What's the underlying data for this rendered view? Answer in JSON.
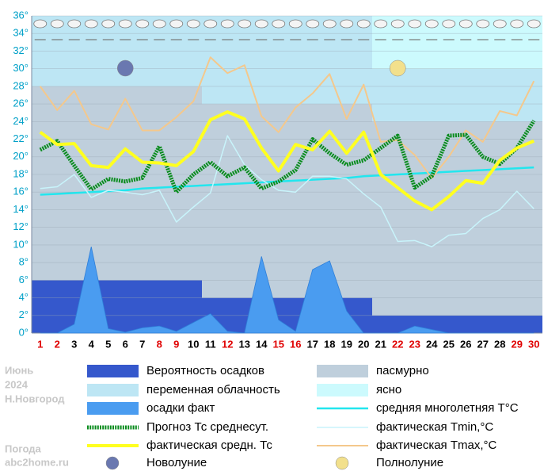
{
  "chart_data": {
    "type": "line",
    "categories": [
      "1",
      "2",
      "3",
      "4",
      "5",
      "6",
      "7",
      "8",
      "9",
      "10",
      "11",
      "12",
      "13",
      "14",
      "15",
      "16",
      "17",
      "18",
      "19",
      "20",
      "21",
      "22",
      "23",
      "24",
      "25",
      "26",
      "27",
      "28",
      "29",
      "30"
    ],
    "category_colors": [
      "#e00000",
      "#e00000",
      "#000000",
      "#000000",
      "#000000",
      "#000000",
      "#000000",
      "#e00000",
      "#e00000",
      "#000000",
      "#000000",
      "#e00000",
      "#000000",
      "#000000",
      "#e00000",
      "#e00000",
      "#000000",
      "#000000",
      "#000000",
      "#000000",
      "#000000",
      "#e00000",
      "#e00000",
      "#000000",
      "#000000",
      "#000000",
      "#000000",
      "#000000",
      "#e00000",
      "#e00000"
    ],
    "ylim": [
      0,
      36
    ],
    "yticks": [
      {
        "value": 0,
        "label": "0°"
      },
      {
        "value": 2,
        "label": "2°"
      },
      {
        "value": 4,
        "label": "4°"
      },
      {
        "value": 6,
        "label": "6°"
      },
      {
        "value": 8,
        "label": "8°"
      },
      {
        "value": 10,
        "label": "10°"
      },
      {
        "value": 12,
        "label": "12°"
      },
      {
        "value": 14,
        "label": "14°"
      },
      {
        "value": 16,
        "label": "16°"
      },
      {
        "value": 18,
        "label": "18°"
      },
      {
        "value": 20,
        "label": "20°"
      },
      {
        "value": 22,
        "label": "22°"
      },
      {
        "value": 24,
        "label": "24°"
      },
      {
        "value": 26,
        "label": "26°"
      },
      {
        "value": 28,
        "label": "28°"
      },
      {
        "value": 30,
        "label": "30°"
      },
      {
        "value": 32,
        "label": "32°"
      },
      {
        "value": 34,
        "label": "34°"
      },
      {
        "value": 36,
        "label": "36°"
      }
    ],
    "grid": true,
    "cloud_layers": [
      {
        "name": "Вероятность осадков",
        "color": "#3558cc",
        "values": [
          6,
          4,
          2
        ]
      },
      {
        "name": "пасмурно",
        "color": "#bfcfdc",
        "values": [
          22,
          22,
          22
        ]
      },
      {
        "name": "переменная облачность",
        "color": "#bde6f4",
        "values": [
          8,
          10,
          6
        ]
      },
      {
        "name": "ясно",
        "color": "#ccfafd",
        "values": [
          0,
          0,
          6
        ]
      }
    ],
    "series": [
      {
        "name": "осадки факт",
        "kind": "area",
        "color": "#4a9cf0",
        "values": [
          0,
          0,
          1,
          9.8,
          0.5,
          0.1,
          0.6,
          0.8,
          0.2,
          1.2,
          2.2,
          0.2,
          0,
          8.7,
          1.5,
          0.2,
          7.2,
          8.2,
          2.5,
          0,
          0,
          0,
          0.8,
          0.4,
          0,
          0,
          0,
          0,
          0,
          0
        ]
      },
      {
        "name": "средняя многолетняя Т°С",
        "kind": "line",
        "color": "#22e6ee",
        "width": 2.5,
        "values": [
          15.7,
          15.8,
          15.9,
          16.0,
          16.1,
          16.2,
          16.4,
          16.5,
          16.6,
          16.7,
          16.8,
          16.9,
          17.0,
          17.1,
          17.2,
          17.3,
          17.4,
          17.5,
          17.6,
          17.8,
          17.9,
          18.0,
          18.1,
          18.2,
          18.3,
          18.4,
          18.5,
          18.6,
          18.7,
          18.8
        ]
      },
      {
        "name": "фактическая Tmin,°С",
        "kind": "line",
        "color": "#c8f4fb",
        "width": 1.5,
        "values": [
          16.4,
          16.6,
          18,
          15.4,
          16.2,
          16,
          15.7,
          16.2,
          12.6,
          14.3,
          15.9,
          22.4,
          19.1,
          17.4,
          16.2,
          16,
          17.8,
          17.8,
          17.5,
          15.8,
          14.3,
          10.4,
          10.5,
          9.8,
          11.1,
          11.3,
          13,
          14,
          16.1,
          14.1
        ]
      },
      {
        "name": "фактическая Tmax,°С",
        "kind": "line",
        "color": "#f4c88c",
        "width": 2,
        "values": [
          28,
          25.3,
          27.5,
          23.7,
          23.1,
          26.6,
          23,
          23,
          24.5,
          26.3,
          31.3,
          29.5,
          30.4,
          24.6,
          22.8,
          25.6,
          27.2,
          29.4,
          24.3,
          28.2,
          21.7,
          21.9,
          20.2,
          17.6,
          20,
          23,
          21.7,
          25.2,
          24.7,
          28.6
        ]
      },
      {
        "name": "Прогноз Тс среднесут.",
        "kind": "dotted",
        "color": "#0a8c1e",
        "width": 5,
        "values": [
          20.8,
          21.8,
          19,
          16.3,
          17.5,
          17.2,
          17.6,
          21.2,
          16,
          18,
          19.4,
          17.8,
          18.8,
          16.4,
          17.2,
          18.5,
          22,
          20.4,
          19.1,
          19.6,
          21,
          22.4,
          16.5,
          17.8,
          22.4,
          22.5,
          20,
          19.2,
          21,
          24.1
        ]
      },
      {
        "name": "фактическая средн. Тс",
        "kind": "line",
        "color": "#ffff20",
        "width": 4,
        "values": [
          22.8,
          21.4,
          21.5,
          19,
          18.8,
          20.9,
          19.4,
          19.3,
          19,
          20.6,
          24.2,
          25.1,
          24.3,
          21,
          18.4,
          21.4,
          20.8,
          22.9,
          20.4,
          22.8,
          18,
          16.5,
          15,
          14,
          15.5,
          17.3,
          17,
          19.6,
          21,
          21.8
        ]
      }
    ],
    "moon_phases": [
      {
        "name": "Новолуние",
        "day": 6,
        "color": "#6a78b0"
      },
      {
        "name": "Полнолуние",
        "day": 22,
        "color": "#f2e08c"
      }
    ],
    "side_text": [
      "Июнь",
      "2024",
      "Н.Новгород"
    ],
    "site_text": [
      "Погода",
      "abc2home.ru"
    ]
  }
}
